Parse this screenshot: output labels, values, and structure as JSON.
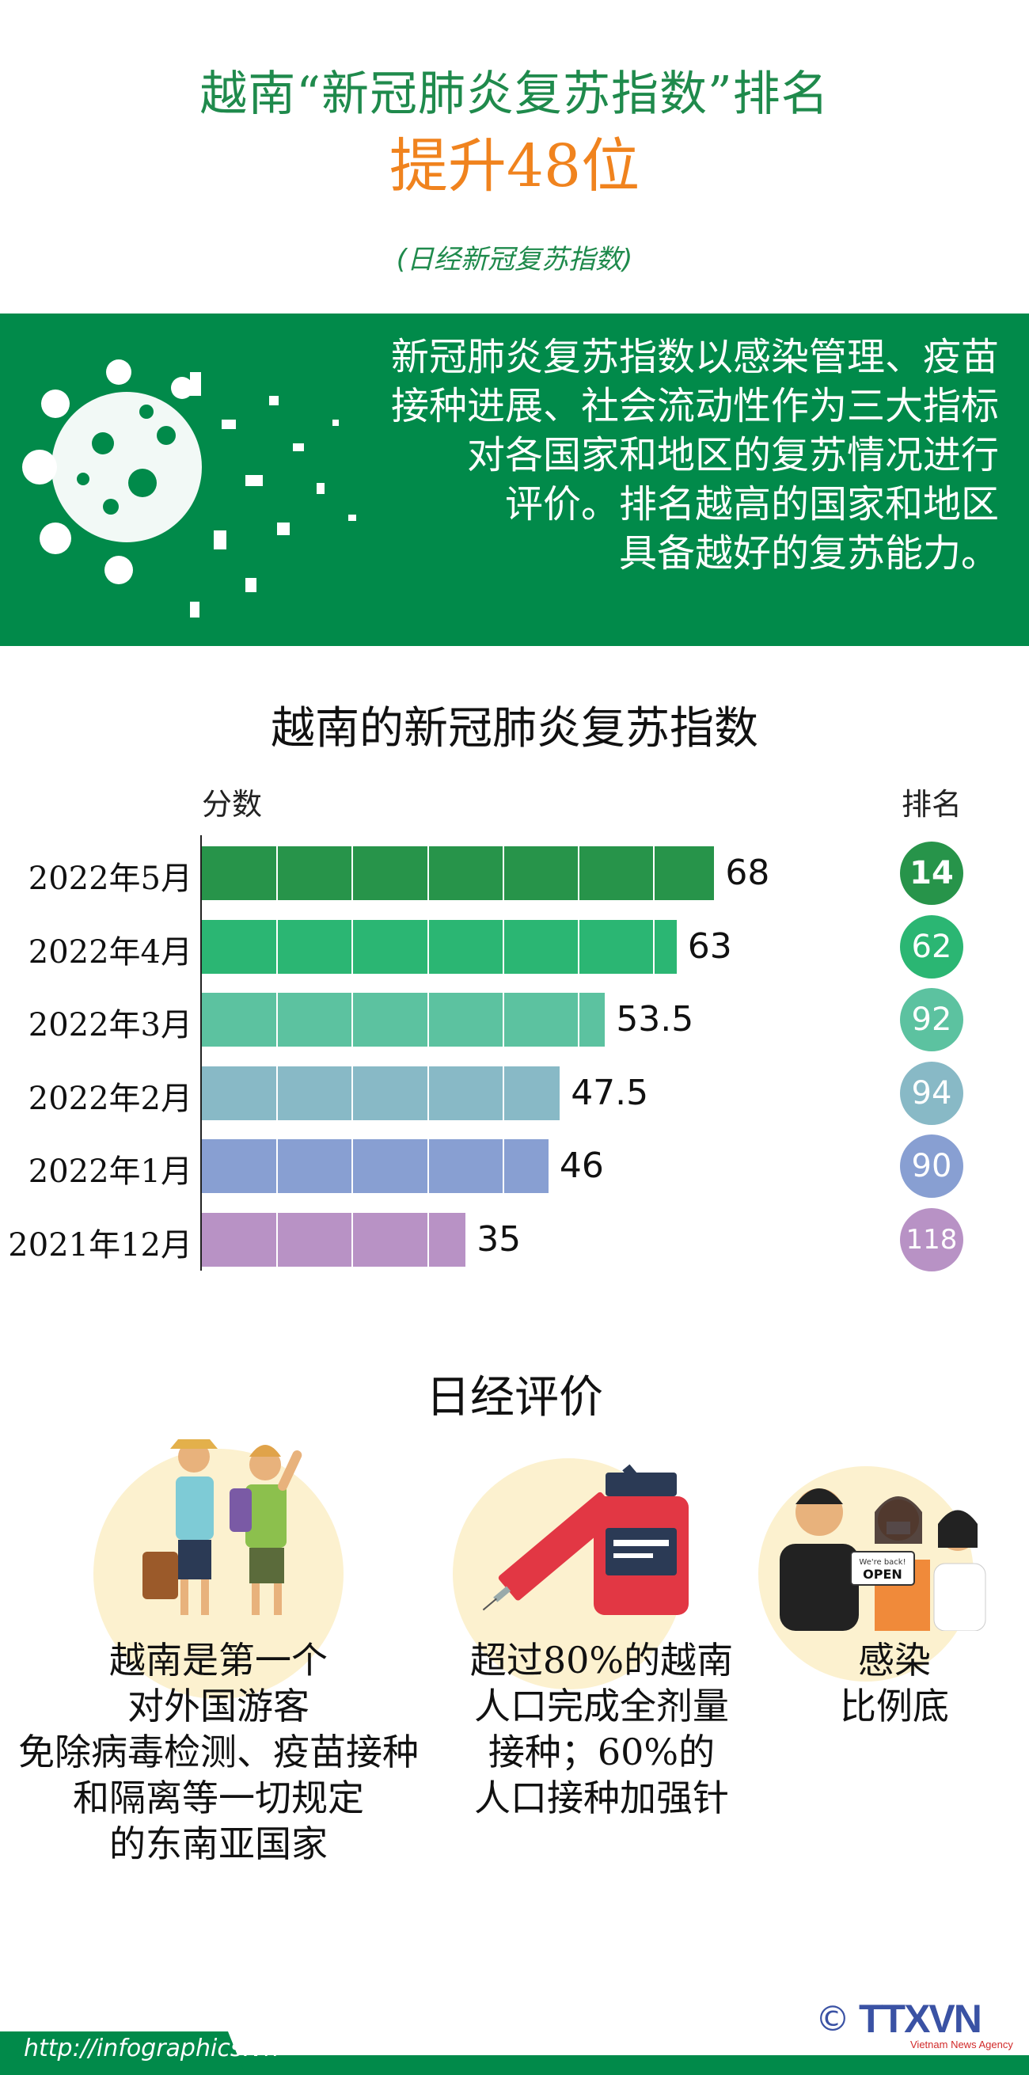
{
  "header": {
    "title_line1": "越南“新冠肺炎复苏指数”排名",
    "title_line2": "提升48位",
    "subtitle": "(日经新冠复苏指数)"
  },
  "intro": {
    "text": "新冠肺炎复苏指数以感染管理、疫苗接种进展、社会流动性作为三大指标对各国家和地区的复苏情况进行评价。排名越高的国家和地区具备越好的复苏能力。",
    "lines": [
      "新冠肺炎复苏指数以感染管理、疫苗",
      "接种进展、社会流动性作为三大指标",
      "对各国家和地区的复苏情况进行",
      "评价。排名越高的国家和地区",
      "具备越好的复苏能力。"
    ]
  },
  "chart_data": {
    "type": "bar",
    "orientation": "horizontal",
    "title": "越南的新冠肺炎复苏指数",
    "xlabel": "分数",
    "rank_label": "排名",
    "categories": [
      "2022年5月",
      "2022年4月",
      "2022年3月",
      "2022年2月",
      "2022年1月",
      "2021年12月"
    ],
    "values": [
      68,
      63,
      53.5,
      47.5,
      46,
      35
    ],
    "value_labels": [
      "68",
      "63",
      "53.5",
      "47.5",
      "46",
      "35"
    ],
    "ranks": [
      "14",
      "62",
      "92",
      "94",
      "90",
      "118"
    ],
    "colors": [
      "#27944a",
      "#2bb673",
      "#5cc2a0",
      "#88b9c6",
      "#889fd2",
      "#b892c5"
    ],
    "xlim": [
      0,
      70
    ],
    "grid": false
  },
  "evaluation": {
    "title": "日经评价",
    "items": [
      {
        "lines": [
          "越南是第一个",
          "对外国游客",
          "免除病毒检测、疫苗接种",
          "和隔离等一切规定",
          "的东南亚国家"
        ]
      },
      {
        "lines": [
          "超过80%的越南",
          "人口完成全剂量",
          "接种；60%的",
          "人口接种加强针"
        ]
      },
      {
        "lines": [
          "感染",
          "比例底"
        ],
        "sign_text": "We're back! OPEN"
      }
    ]
  },
  "footer": {
    "url": "http://infographics.vn",
    "logo": "TTXVN",
    "logo_sub": "Vietnam News Agency",
    "copyright": "©"
  }
}
